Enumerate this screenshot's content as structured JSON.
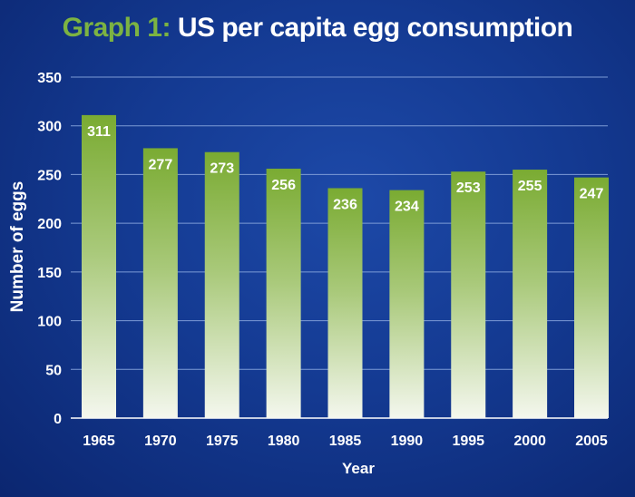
{
  "chart_data": {
    "type": "bar",
    "title_prefix": "Graph 1:",
    "title": "US  per capita egg consumption",
    "xlabel": "Year",
    "ylabel": "Number of eggs",
    "categories": [
      "1965",
      "1970",
      "1975",
      "1980",
      "1985",
      "1990",
      "1995",
      "2000",
      "2005"
    ],
    "values": [
      311,
      277,
      273,
      256,
      236,
      234,
      253,
      255,
      247
    ],
    "ylim": [
      0,
      350
    ],
    "yticks": [
      0,
      50,
      100,
      150,
      200,
      250,
      300,
      350
    ],
    "grid": true,
    "colors": {
      "bar_top": "#7aab32",
      "bar_bottom": "#f4f7ee",
      "accent": "#7cb342",
      "grid": "#7d9bd6"
    }
  }
}
